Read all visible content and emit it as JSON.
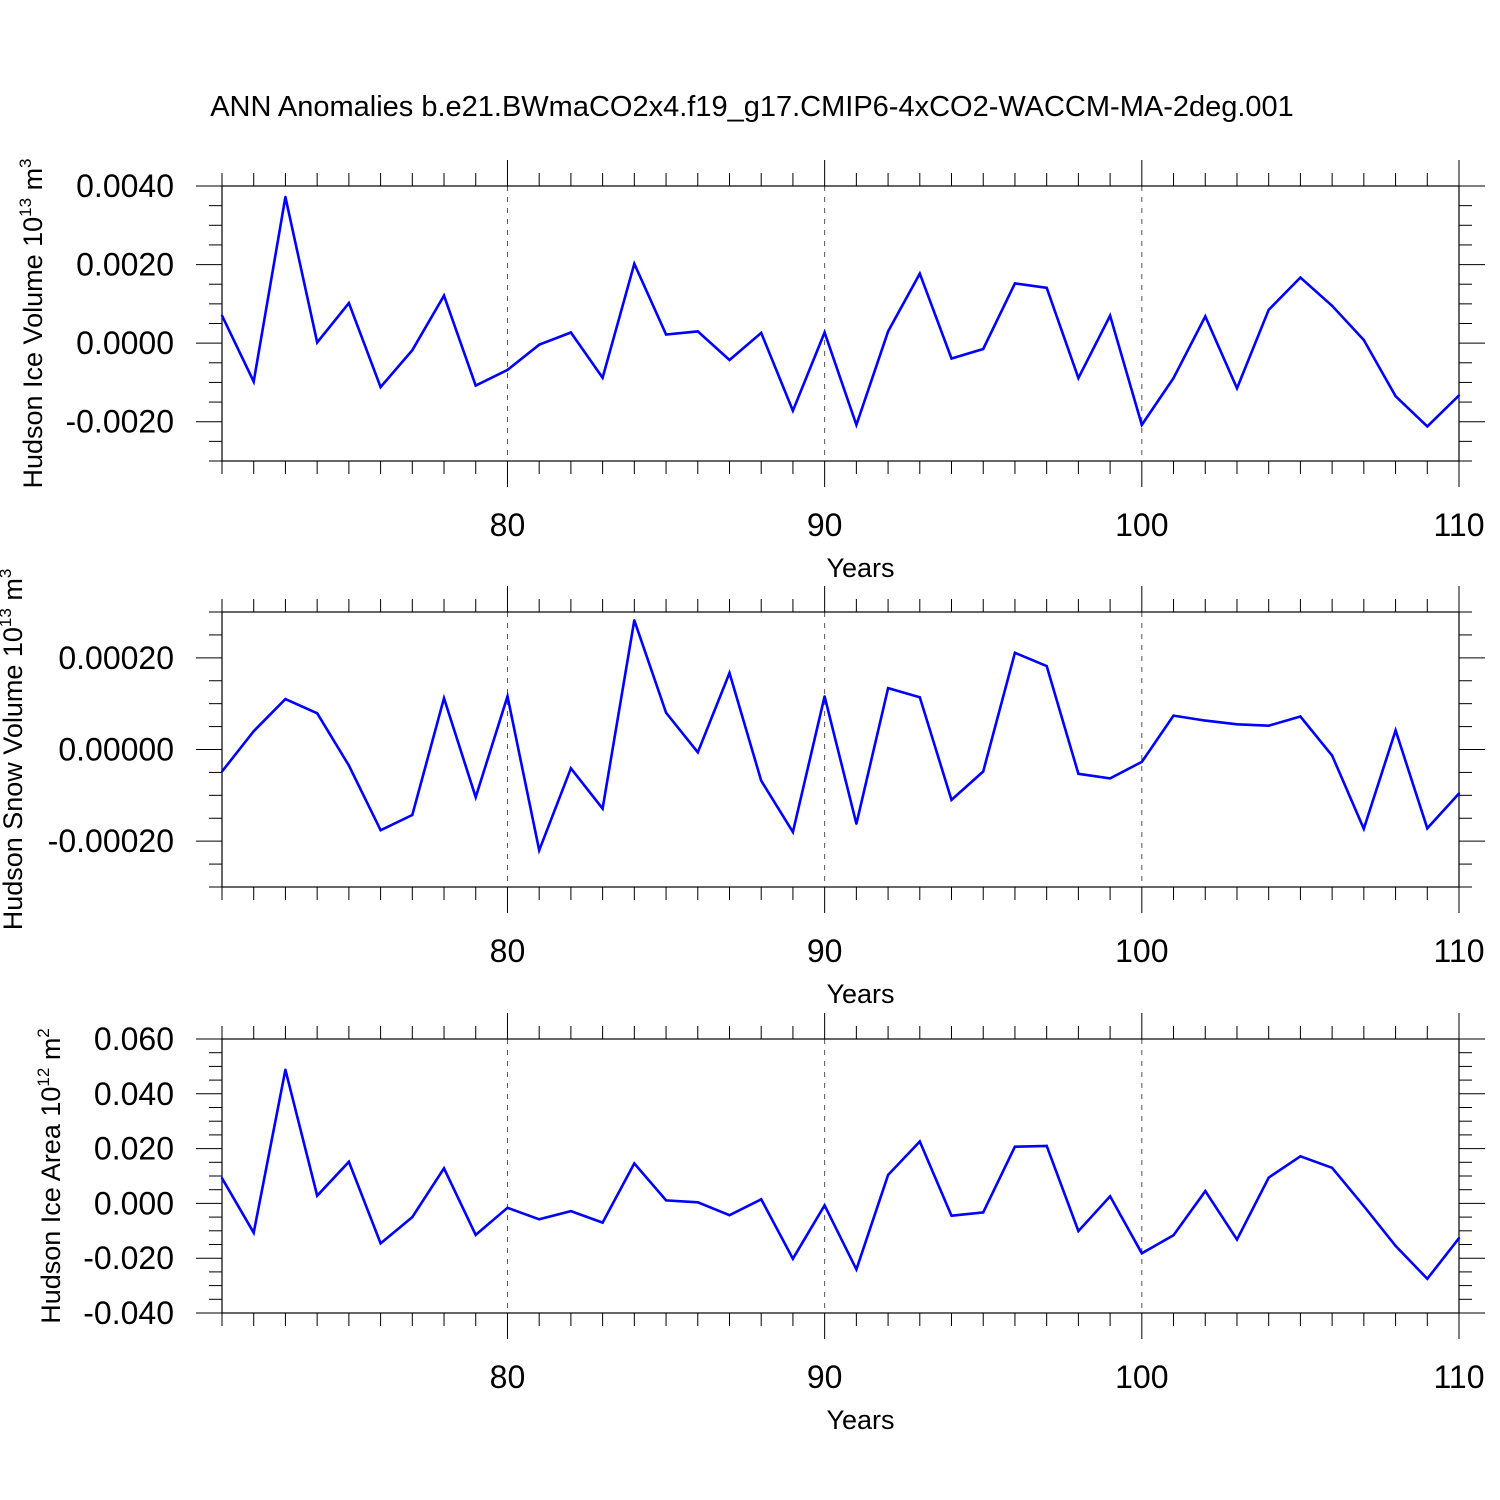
{
  "figure": {
    "title": "ANN Anomalies b.e21.BWmaCO2x4.f19_g17.CMIP6-4xCO2-WACCM-MA-2deg.001"
  },
  "chart_data": [
    {
      "type": "line",
      "ylabel_main": "Hudson Ice Volume 10",
      "ylabel_exp": "13",
      "ylabel_unit": " m",
      "ylabel_unit_exp": "3",
      "xlabel": "Years",
      "xlim": [
        71,
        110
      ],
      "ylim": [
        -0.003,
        0.004
      ],
      "xticks": [
        80,
        90,
        100,
        110
      ],
      "xtick_labels": [
        "80",
        "90",
        "100",
        "110"
      ],
      "yticks": [
        0.004,
        0.002,
        0.0,
        -0.002
      ],
      "ytick_labels": [
        "0.0040",
        "0.0020",
        "0.0000",
        "-0.0020"
      ],
      "grid": "dashed vertical lines at major x ticks",
      "line_color": "#0000ff",
      "x": [
        71,
        72,
        73,
        74,
        75,
        76,
        77,
        78,
        79,
        80,
        81,
        82,
        83,
        84,
        85,
        86,
        87,
        88,
        89,
        90,
        91,
        92,
        93,
        94,
        95,
        96,
        97,
        98,
        99,
        100,
        101,
        102,
        103,
        104,
        105,
        106,
        107,
        108,
        109,
        110
      ],
      "y": [
        0.0007,
        -0.00098,
        0.00372,
        2e-05,
        0.00102,
        -0.00112,
        -0.00018,
        0.00121,
        -0.00108,
        -0.00068,
        -4e-05,
        0.00027,
        -0.00088,
        0.00202,
        0.00022,
        0.0003,
        -0.00043,
        0.00026,
        -0.00172,
        0.00027,
        -0.00208,
        0.0003,
        0.00177,
        -0.00039,
        -0.00015,
        0.00152,
        0.00141,
        -0.00089,
        0.0007,
        -0.00208,
        -0.00089,
        0.00068,
        -0.00115,
        0.00085,
        0.00167,
        0.00095,
        8e-05,
        -0.00135,
        -0.00212,
        -0.00133
      ]
    },
    {
      "type": "line",
      "ylabel_main": "Hudson Snow Volume 10",
      "ylabel_exp": "13",
      "ylabel_unit": " m",
      "ylabel_unit_exp": "3",
      "xlabel": "Years",
      "xlim": [
        71,
        110
      ],
      "ylim": [
        -0.0003,
        0.0003
      ],
      "xticks": [
        80,
        90,
        100,
        110
      ],
      "xtick_labels": [
        "80",
        "90",
        "100",
        "110"
      ],
      "yticks": [
        0.0002,
        0.0,
        -0.0002
      ],
      "ytick_labels": [
        "0.00020",
        "0.00000",
        "-0.00020"
      ],
      "grid": "dashed vertical lines at major x ticks",
      "line_color": "#0000ff",
      "x": [
        71,
        72,
        73,
        74,
        75,
        76,
        77,
        78,
        79,
        80,
        81,
        82,
        83,
        84,
        85,
        86,
        87,
        88,
        89,
        90,
        91,
        92,
        93,
        94,
        95,
        96,
        97,
        98,
        99,
        100,
        101,
        102,
        103,
        104,
        105,
        106,
        107,
        108,
        109,
        110
      ],
      "y": [
        -4.8e-05,
        4e-05,
        0.00011,
        7.9e-05,
        -3.5e-05,
        -0.000176,
        -0.000143,
        0.000112,
        -0.000104,
        0.000116,
        -0.00022,
        -4.1e-05,
        -0.000129,
        0.000282,
        8e-05,
        -6e-06,
        0.000167,
        -6.8e-05,
        -0.00018,
        0.000116,
        -0.000162,
        0.000134,
        0.000114,
        -0.00011,
        -4.8e-05,
        0.000211,
        0.000182,
        -5.3e-05,
        -6.3e-05,
        -2.7e-05,
        7.4e-05,
        6.3e-05,
        5.5e-05,
        5.2e-05,
        7.2e-05,
        -1.3e-05,
        -0.000173,
        4.2e-05,
        -0.000172,
        -9.6e-05
      ]
    },
    {
      "type": "line",
      "ylabel_main": "Hudson Ice Area 10",
      "ylabel_exp": "12",
      "ylabel_unit": " m",
      "ylabel_unit_exp": "2",
      "xlabel": "Years",
      "xlim": [
        71,
        110
      ],
      "ylim": [
        -0.04,
        0.06
      ],
      "xticks": [
        80,
        90,
        100,
        110
      ],
      "xtick_labels": [
        "80",
        "90",
        "100",
        "110"
      ],
      "yticks": [
        0.06,
        0.04,
        0.02,
        0.0,
        -0.02,
        -0.04
      ],
      "ytick_labels": [
        "0.060",
        "0.040",
        "0.020",
        "0.000",
        "-0.020",
        "-0.040"
      ],
      "grid": "dashed vertical lines at major x ticks",
      "line_color": "#0000ff",
      "x": [
        71,
        72,
        73,
        74,
        75,
        76,
        77,
        78,
        79,
        80,
        81,
        82,
        83,
        84,
        85,
        86,
        87,
        88,
        89,
        90,
        91,
        92,
        93,
        94,
        95,
        96,
        97,
        98,
        99,
        100,
        101,
        102,
        103,
        104,
        105,
        106,
        107,
        108,
        109,
        110
      ],
      "y": [
        0.0092,
        -0.0107,
        0.0488,
        0.0028,
        0.0152,
        -0.0146,
        -0.005,
        0.0128,
        -0.0115,
        -0.0016,
        -0.0058,
        -0.0028,
        -0.007,
        0.0146,
        0.0011,
        0.0004,
        -0.0043,
        0.0015,
        -0.0202,
        -0.0007,
        -0.0241,
        0.0104,
        0.0226,
        -0.0045,
        -0.0033,
        0.0207,
        0.021,
        -0.0101,
        0.0026,
        -0.0182,
        -0.0116,
        0.0045,
        -0.0132,
        0.0094,
        0.0172,
        0.013,
        -0.001,
        -0.0155,
        -0.0275,
        -0.0127
      ]
    }
  ]
}
